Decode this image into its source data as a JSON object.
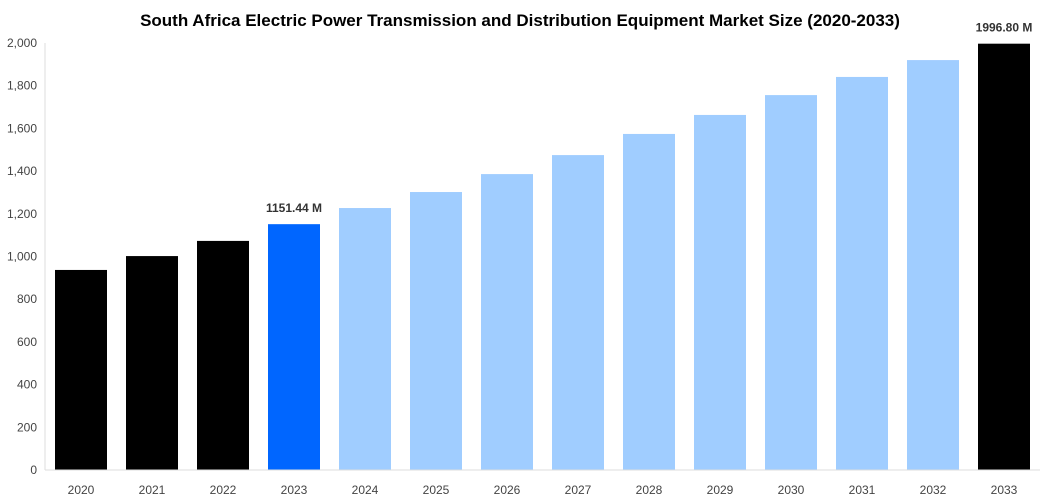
{
  "chart_data": {
    "type": "bar",
    "title": "South Africa Electric Power Transmission and Distribution Equipment Market Size (2020-2033)",
    "xlabel": "",
    "ylabel": "",
    "ylim": [
      0,
      2000
    ],
    "yticks": [
      0,
      200,
      400,
      600,
      800,
      1000,
      1200,
      1400,
      1600,
      1800,
      2000
    ],
    "ytick_labels": [
      "0",
      "200",
      "400",
      "600",
      "800",
      "1,000",
      "1,200",
      "1,400",
      "1,600",
      "1,800",
      "2,000"
    ],
    "categories": [
      "2020",
      "2021",
      "2022",
      "2023",
      "2024",
      "2025",
      "2026",
      "2027",
      "2028",
      "2029",
      "2030",
      "2031",
      "2032",
      "2033"
    ],
    "values": [
      937,
      1002,
      1073,
      1151.44,
      1227,
      1302,
      1386,
      1475,
      1574,
      1663,
      1756,
      1841,
      1920,
      1996.8
    ],
    "colors": [
      "#000000",
      "#000000",
      "#000000",
      "#0066ff",
      "#a0cdff",
      "#a0cdff",
      "#a0cdff",
      "#a0cdff",
      "#a0cdff",
      "#a0cdff",
      "#a0cdff",
      "#a0cdff",
      "#a0cdff",
      "#000000"
    ],
    "data_labels": [
      {
        "index": 3,
        "text": "1151.44 M"
      },
      {
        "index": 13,
        "text": "1996.80 M"
      }
    ],
    "grid": false,
    "legend": "none"
  }
}
